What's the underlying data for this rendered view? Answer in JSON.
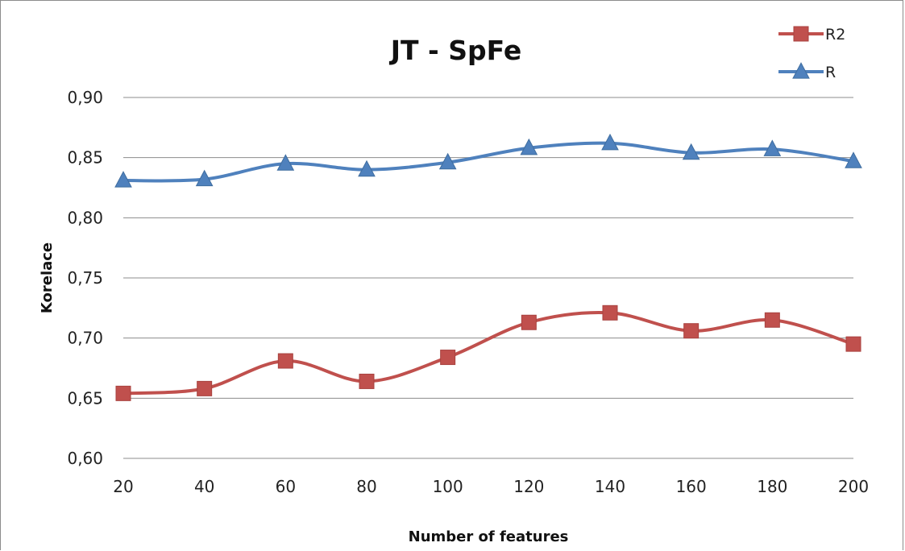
{
  "chart_data": {
    "type": "line",
    "title": "JT - SpFe",
    "xlabel": "Number of features",
    "ylabel": "Korelace",
    "x": [
      20,
      40,
      60,
      80,
      100,
      120,
      140,
      160,
      180,
      200
    ],
    "x_tick_labels": [
      "20",
      "40",
      "60",
      "80",
      "100",
      "120",
      "140",
      "160",
      "180",
      "200"
    ],
    "ylim": [
      0.6,
      0.9
    ],
    "y_ticks": [
      0.6,
      0.65,
      0.7,
      0.75,
      0.8,
      0.85,
      0.9
    ],
    "y_tick_labels": [
      "0,60",
      "0,65",
      "0,70",
      "0,75",
      "0,80",
      "0,85",
      "0,90"
    ],
    "grid": "horizontal",
    "legend_position": "top-right",
    "smooth": true,
    "series": [
      {
        "name": "R2",
        "color": "#c0504d",
        "marker": "square",
        "values": [
          0.654,
          0.658,
          0.681,
          0.664,
          0.684,
          0.713,
          0.721,
          0.706,
          0.715,
          0.695
        ]
      },
      {
        "name": "R",
        "color": "#4f81bd",
        "marker": "triangle",
        "values": [
          0.831,
          0.832,
          0.845,
          0.84,
          0.846,
          0.858,
          0.862,
          0.854,
          0.857,
          0.847
        ]
      }
    ]
  }
}
